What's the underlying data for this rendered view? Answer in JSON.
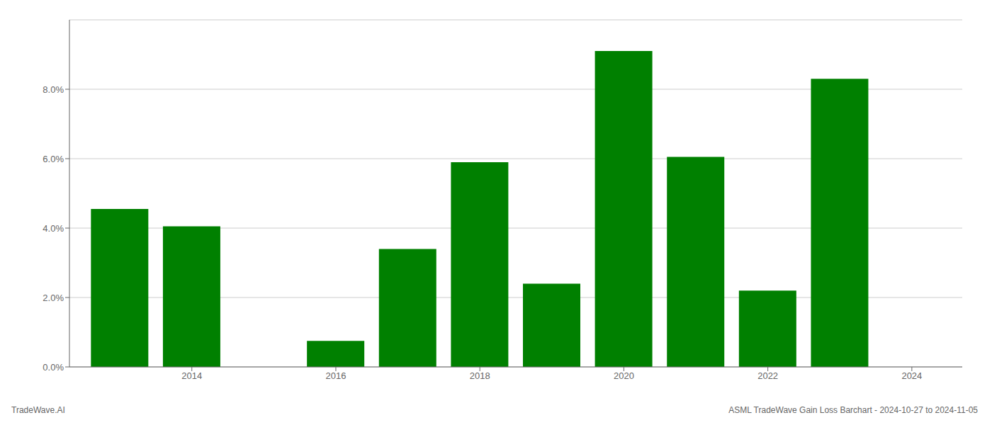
{
  "chart_data": {
    "type": "bar",
    "x": [
      2013,
      2014,
      2016,
      2017,
      2018,
      2019,
      2020,
      2021,
      2022,
      2023
    ],
    "values": [
      0.0455,
      0.0405,
      0.0075,
      0.034,
      0.059,
      0.024,
      0.091,
      0.0605,
      0.022,
      0.083
    ],
    "color": "#008000",
    "xlim": [
      2012.3,
      2024.7
    ],
    "ylim": [
      0.0,
      0.1
    ],
    "xticks": [
      2014,
      2016,
      2018,
      2020,
      2022,
      2024
    ],
    "yticks": [
      {
        "value": 0.0,
        "label": "0.0%"
      },
      {
        "value": 0.02,
        "label": "2.0%"
      },
      {
        "value": 0.04,
        "label": "4.0%"
      },
      {
        "value": 0.06,
        "label": "6.0%"
      },
      {
        "value": 0.08,
        "label": "8.0%"
      }
    ],
    "grid": true,
    "annotations": [
      "TradeWave.AI",
      "ASML TradeWave Gain Loss Barchart - 2024-10-27 to 2024-11-05"
    ]
  }
}
